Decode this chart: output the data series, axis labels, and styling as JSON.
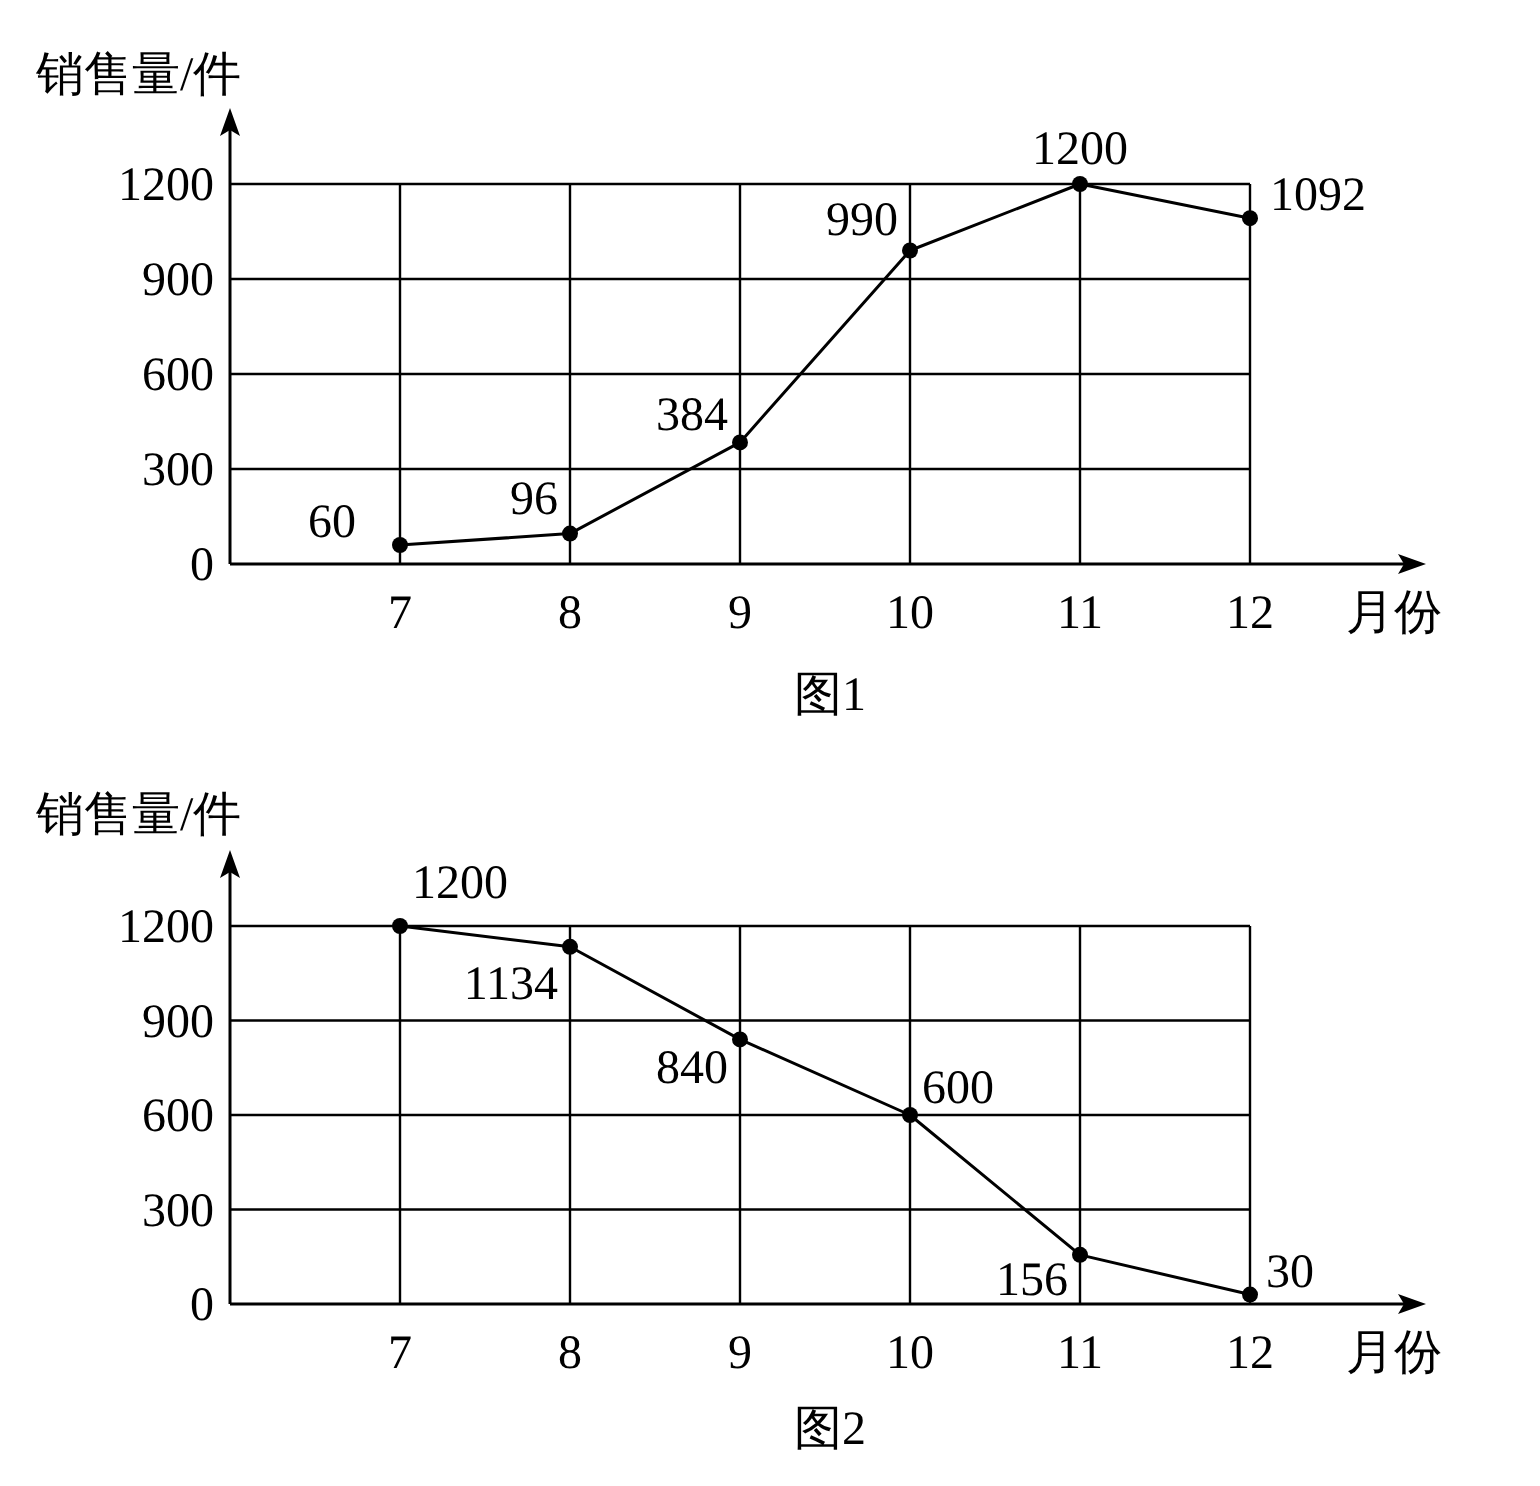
{
  "chart_data": [
    {
      "type": "line",
      "title": "图1",
      "xlabel": "月份",
      "ylabel": "销售量/件",
      "categories": [
        "7",
        "8",
        "9",
        "10",
        "11",
        "12"
      ],
      "values": [
        60,
        96,
        384,
        990,
        1200,
        1092
      ],
      "color": "#000000",
      "ylim": [
        0,
        1200
      ],
      "yticks": [
        0,
        300,
        600,
        900,
        1200
      ],
      "grid": true,
      "marker": "circle",
      "line_style": "solid",
      "data_labels": true
    },
    {
      "type": "line",
      "title": "图2",
      "xlabel": "月份",
      "ylabel": "销售量/件",
      "categories": [
        "7",
        "8",
        "9",
        "10",
        "11",
        "12"
      ],
      "values": [
        1200,
        1134,
        840,
        600,
        156,
        30
      ],
      "color": "#000000",
      "ylim": [
        0,
        1200
      ],
      "yticks": [
        0,
        300,
        600,
        900,
        1200
      ],
      "grid": true,
      "marker": "circle",
      "line_style": "solid",
      "data_labels": true
    }
  ]
}
